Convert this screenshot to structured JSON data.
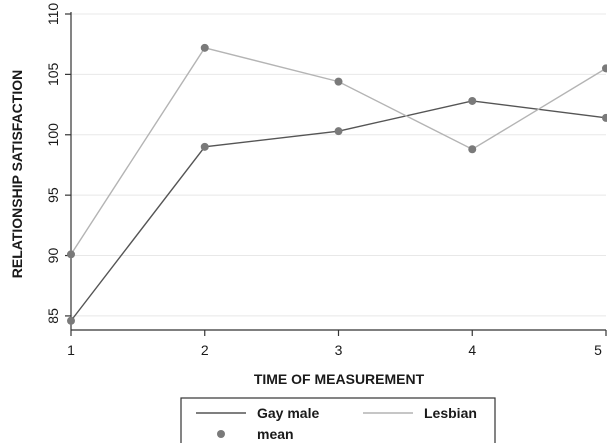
{
  "chart_data": {
    "type": "line",
    "xlabel": "TIME OF MEASUREMENT",
    "ylabel": "RELATIONSHIP SATISFACTION",
    "x": [
      1,
      2,
      3,
      4,
      5
    ],
    "xlim": [
      1,
      5
    ],
    "ylim": [
      84,
      110
    ],
    "yticks": [
      85,
      90,
      95,
      100,
      105,
      110
    ],
    "xticks": [
      1,
      2,
      3,
      4,
      5
    ],
    "grid": true,
    "legend_position": "bottom",
    "series": [
      {
        "name": "Gay male",
        "values": [
          84.6,
          99.0,
          100.3,
          102.8,
          101.4
        ],
        "color": "#555555"
      },
      {
        "name": "Lesbian",
        "values": [
          90.1,
          107.2,
          104.4,
          98.8,
          105.5
        ],
        "color": "#b4b4b4"
      }
    ],
    "markers": {
      "name": "mean",
      "color": "#7a7a7a"
    }
  }
}
